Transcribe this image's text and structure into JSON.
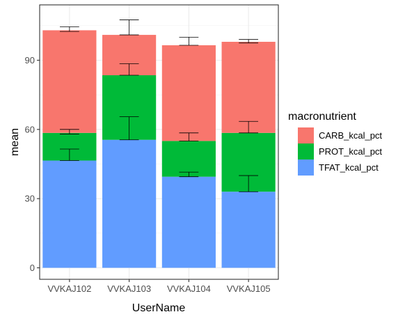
{
  "chart_data": {
    "type": "bar",
    "stacked": true,
    "title": "",
    "xlabel": "UserName",
    "ylabel": "mean",
    "categories": [
      "VVKAJ102",
      "VVKAJ103",
      "VVKAJ104",
      "VVKAJ105"
    ],
    "ylim": [
      -5,
      110
    ],
    "yticks": [
      0,
      30,
      60,
      90
    ],
    "grid": true,
    "legend": {
      "title": "macronutrient",
      "position": "right"
    },
    "series": [
      {
        "name": "TFAT_kcal_pct",
        "color": "#619CFF",
        "values": [
          46.5,
          55.5,
          39.5,
          33.0
        ],
        "error_low": [
          46.5,
          55.5,
          39.5,
          33.0
        ],
        "error_high": [
          51.5,
          65.5,
          41.5,
          40.0
        ]
      },
      {
        "name": "PROT_kcal_pct",
        "color": "#00BA38",
        "values": [
          12.0,
          28.0,
          15.5,
          25.5
        ],
        "error_low": [
          58.0,
          83.5,
          55.0,
          58.5
        ],
        "error_high": [
          60.0,
          88.5,
          58.5,
          63.5
        ]
      },
      {
        "name": "CARB_kcal_pct",
        "color": "#F8766D",
        "values": [
          44.5,
          17.5,
          41.5,
          39.5
        ],
        "error_low": [
          102.5,
          101.0,
          96.5,
          97.5
        ],
        "error_high": [
          104.5,
          107.5,
          100.0,
          99.0
        ]
      }
    ],
    "legend_order": [
      "CARB_kcal_pct",
      "PROT_kcal_pct",
      "TFAT_kcal_pct"
    ]
  }
}
